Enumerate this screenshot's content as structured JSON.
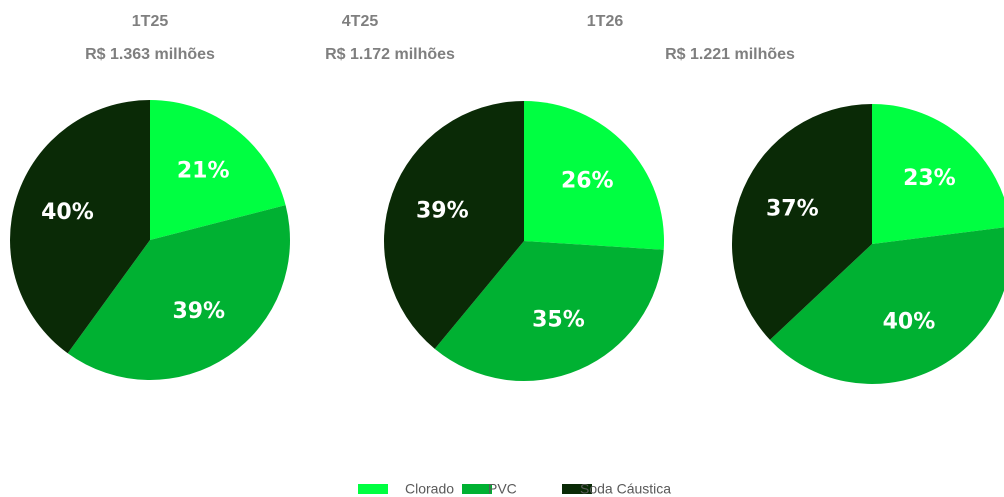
{
  "chart_data": [
    {
      "type": "pie",
      "title": "1T25",
      "subtitle": "R$ 1.363 milhões",
      "categories": [
        "Clorado",
        "PVC",
        "Soda Cáustica"
      ],
      "values": [
        21,
        39,
        40
      ],
      "value_labels": [
        "21%",
        "39%",
        "40%"
      ],
      "colors": [
        "#00ff41",
        "#00b132",
        "#0a2a06"
      ]
    },
    {
      "type": "pie",
      "title": "4T25",
      "subtitle": "R$ 1.172 milhões",
      "categories": [
        "Clorado",
        "PVC",
        "Soda Cáustica"
      ],
      "values": [
        26,
        35,
        39
      ],
      "value_labels": [
        "26%",
        "35%",
        "39%"
      ],
      "colors": [
        "#00ff41",
        "#00b132",
        "#0a2a06"
      ]
    },
    {
      "type": "pie",
      "title": "1T26",
      "subtitle": "R$ 1.221 milhões",
      "categories": [
        "Clorado",
        "PVC",
        "Soda Cáustica"
      ],
      "values": [
        23,
        40,
        37
      ],
      "value_labels": [
        "23%",
        "40%",
        "37%"
      ],
      "colors": [
        "#00ff41",
        "#00b132",
        "#0a2a06"
      ]
    }
  ]
}
